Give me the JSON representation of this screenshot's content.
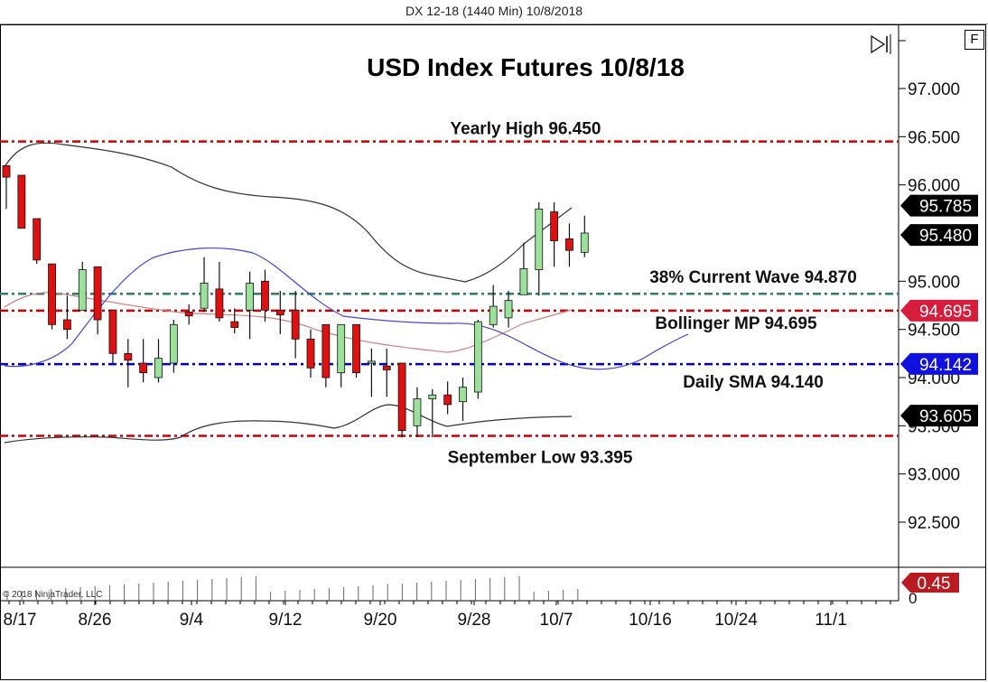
{
  "window": {
    "title": "DX 12-18 (1440 Min)  10/8/2018",
    "f_button_label": "F",
    "scroll_end_icon": "skip-to-end-icon",
    "copyright": "© 2018 NinjaTrader, LLC"
  },
  "colors": {
    "up_candle": "#9be09b",
    "down_candle": "#e01010",
    "resistance_line": "#cc0000",
    "fib_line": "#2e7d6b",
    "sma_line": "#0000bb",
    "bollinger_band": "#333333",
    "bollinger_mid": "#d08080",
    "sma_curve": "#4444cc"
  },
  "chart_data": {
    "type": "candlestick",
    "title": "USD Index Futures 10/8/18",
    "instrument": "DX 12-18 (1440 Min)",
    "y_axis": {
      "ticks": [
        "97.000",
        "96.500",
        "96.000",
        "95.000",
        "94.500",
        "94.000",
        "93.500",
        "93.000",
        "92.500"
      ],
      "range": [
        92.0,
        97.3
      ]
    },
    "x_axis": {
      "ticks": [
        "8/17",
        "8/26",
        "9/4",
        "9/12",
        "9/20",
        "9/28",
        "10/7",
        "10/16",
        "10/24",
        "11/1"
      ]
    },
    "price_markers": [
      {
        "label": "95.785",
        "value": 95.785,
        "color": "#000000",
        "name": "upper-bollinger-marker"
      },
      {
        "label": "95.480",
        "value": 95.48,
        "color": "#000000",
        "name": "last-price-marker"
      },
      {
        "label": "94.695",
        "value": 94.695,
        "color": "#d81c3c",
        "name": "bollinger-mid-marker"
      },
      {
        "label": "94.142",
        "value": 94.142,
        "color": "#1010e0",
        "name": "sma-marker"
      },
      {
        "label": "93.605",
        "value": 93.605,
        "color": "#000000",
        "name": "lower-bollinger-marker"
      }
    ],
    "horizontal_levels": [
      {
        "label": "Yearly High 96.450",
        "value": 96.45,
        "style": "dash-dot",
        "color": "#cc0000"
      },
      {
        "label": "38% Current Wave 94.870",
        "value": 94.87,
        "style": "dash-dot",
        "color": "#2e7d6b"
      },
      {
        "label": "Bollinger MP 94.695",
        "value": 94.695,
        "style": "dash-dot",
        "color": "#cc0000"
      },
      {
        "label": "Daily SMA 94.140",
        "value": 94.14,
        "style": "dash-dot",
        "color": "#0000bb"
      },
      {
        "label": "September Low 93.395",
        "value": 93.395,
        "style": "dash-dot",
        "color": "#cc0000"
      }
    ],
    "candles": [
      {
        "o": 96.2,
        "h": 96.2,
        "l": 95.75,
        "c": 96.08
      },
      {
        "o": 96.1,
        "h": 96.1,
        "l": 95.55,
        "c": 95.55
      },
      {
        "o": 95.65,
        "h": 95.65,
        "l": 95.18,
        "c": 95.22
      },
      {
        "o": 95.18,
        "h": 95.18,
        "l": 94.5,
        "c": 94.55
      },
      {
        "o": 94.6,
        "h": 94.85,
        "l": 94.4,
        "c": 94.5
      },
      {
        "o": 94.7,
        "h": 95.2,
        "l": 94.7,
        "c": 95.12
      },
      {
        "o": 95.15,
        "h": 95.15,
        "l": 94.45,
        "c": 94.6
      },
      {
        "o": 94.7,
        "h": 94.7,
        "l": 94.15,
        "c": 94.25
      },
      {
        "o": 94.25,
        "h": 94.4,
        "l": 93.9,
        "c": 94.18
      },
      {
        "o": 94.15,
        "h": 94.4,
        "l": 93.95,
        "c": 94.05
      },
      {
        "o": 94.0,
        "h": 94.4,
        "l": 93.95,
        "c": 94.2
      },
      {
        "o": 94.15,
        "h": 94.6,
        "l": 94.05,
        "c": 94.55
      },
      {
        "o": 94.68,
        "h": 94.76,
        "l": 94.55,
        "c": 94.64
      },
      {
        "o": 94.72,
        "h": 95.25,
        "l": 94.68,
        "c": 94.98
      },
      {
        "o": 94.92,
        "h": 95.2,
        "l": 94.58,
        "c": 94.62
      },
      {
        "o": 94.58,
        "h": 94.72,
        "l": 94.46,
        "c": 94.52
      },
      {
        "o": 94.7,
        "h": 95.1,
        "l": 94.4,
        "c": 94.98
      },
      {
        "o": 95.0,
        "h": 95.12,
        "l": 94.58,
        "c": 94.7
      },
      {
        "o": 94.7,
        "h": 94.9,
        "l": 94.45,
        "c": 94.65
      },
      {
        "o": 94.7,
        "h": 94.9,
        "l": 94.2,
        "c": 94.4
      },
      {
        "o": 94.4,
        "h": 94.5,
        "l": 94.0,
        "c": 94.1
      },
      {
        "o": 94.55,
        "h": 94.55,
        "l": 93.9,
        "c": 94.0
      },
      {
        "o": 94.05,
        "h": 94.45,
        "l": 93.9,
        "c": 94.55
      },
      {
        "o": 94.55,
        "h": 94.55,
        "l": 94.0,
        "c": 94.05
      },
      {
        "o": 94.15,
        "h": 94.3,
        "l": 93.8,
        "c": 94.17
      },
      {
        "o": 94.12,
        "h": 94.3,
        "l": 93.8,
        "c": 94.08
      },
      {
        "o": 94.15,
        "h": 94.15,
        "l": 93.38,
        "c": 93.45
      },
      {
        "o": 93.5,
        "h": 93.9,
        "l": 93.38,
        "c": 93.78
      },
      {
        "o": 93.78,
        "h": 93.88,
        "l": 93.38,
        "c": 93.82
      },
      {
        "o": 93.82,
        "h": 93.96,
        "l": 93.62,
        "c": 93.72
      },
      {
        "o": 93.75,
        "h": 94.0,
        "l": 93.55,
        "c": 93.9
      },
      {
        "o": 93.85,
        "h": 94.6,
        "l": 93.78,
        "c": 94.58
      },
      {
        "o": 94.55,
        "h": 94.96,
        "l": 94.52,
        "c": 94.74
      },
      {
        "o": 94.62,
        "h": 94.9,
        "l": 94.52,
        "c": 94.8
      },
      {
        "o": 94.86,
        "h": 95.4,
        "l": 94.86,
        "c": 95.13
      },
      {
        "o": 95.12,
        "h": 95.82,
        "l": 94.85,
        "c": 95.75
      },
      {
        "o": 95.72,
        "h": 95.82,
        "l": 95.15,
        "c": 95.42
      },
      {
        "o": 95.44,
        "h": 95.6,
        "l": 95.15,
        "c": 95.32
      },
      {
        "o": 95.3,
        "h": 95.68,
        "l": 95.25,
        "c": 95.5
      }
    ],
    "volume_indicator": {
      "label": "0.45",
      "zero_tick": "0"
    }
  }
}
